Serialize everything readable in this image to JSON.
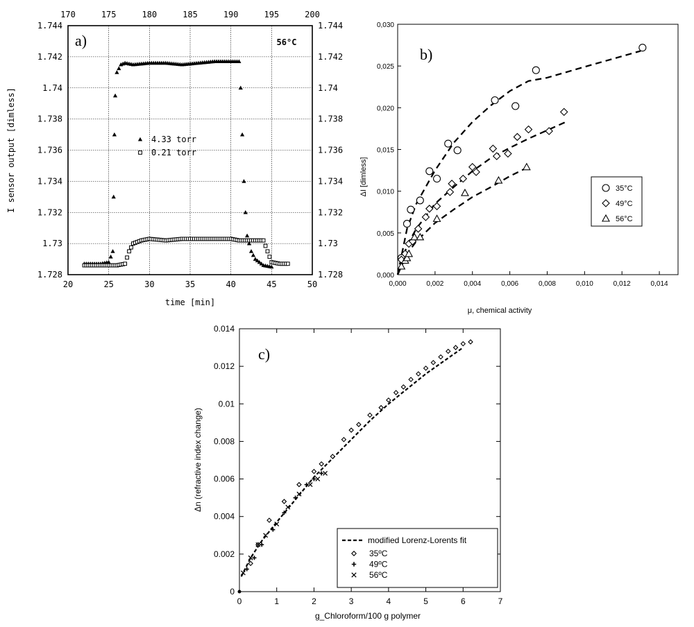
{
  "chart_data": [
    {
      "id": "a",
      "type": "scatter",
      "panel_label": "a)",
      "annotation": "56°C",
      "xlabel": "time [min]",
      "ylabel": "I sensor output [dimless]",
      "xlim": [
        20,
        50
      ],
      "x_ticks": [
        "20",
        "25",
        "30",
        "35",
        "40",
        "45",
        "50"
      ],
      "x2lim": [
        170,
        200
      ],
      "x2_ticks": [
        "170",
        "175",
        "180",
        "185",
        "190",
        "195",
        "200"
      ],
      "ylim": [
        1.728,
        1.744
      ],
      "y_ticks": [
        "1.728",
        "1.73",
        "1.732",
        "1.734",
        "1.736",
        "1.738",
        "1.74",
        "1.742",
        "1.744"
      ],
      "y_ticks_right": [
        "1.728",
        "1.73",
        "1.732",
        "1.734",
        "1.736",
        "1.738",
        "1.74",
        "1.742",
        "1.744"
      ],
      "legend": [
        "4.33 torr",
        "0.21 torr"
      ],
      "series": [
        {
          "name": "4.33 torr",
          "marker": "triangle",
          "x": [
            22,
            23,
            24,
            25,
            25.5,
            25.6,
            25.7,
            25.8,
            26,
            26.5,
            27,
            28,
            30,
            32,
            34,
            36,
            38,
            40,
            41,
            41.2,
            41.4,
            41.6,
            41.8,
            42,
            42.5,
            43,
            44,
            45
          ],
          "y": [
            1.7287,
            1.7287,
            1.7287,
            1.7288,
            1.7295,
            1.733,
            1.737,
            1.7395,
            1.741,
            1.7415,
            1.7416,
            1.7415,
            1.7416,
            1.7416,
            1.7415,
            1.7416,
            1.7417,
            1.7417,
            1.7417,
            1.74,
            1.737,
            1.734,
            1.732,
            1.7305,
            1.7295,
            1.729,
            1.7286,
            1.7285
          ]
        },
        {
          "name": "0.21 torr",
          "marker": "square",
          "x": [
            22,
            24,
            26,
            27,
            27.5,
            28,
            29,
            30,
            32,
            34,
            36,
            38,
            40,
            41,
            42,
            43,
            44,
            44.5,
            45,
            46,
            47
          ],
          "y": [
            1.7286,
            1.7286,
            1.7286,
            1.7287,
            1.7295,
            1.73,
            1.7302,
            1.7303,
            1.7302,
            1.7303,
            1.7303,
            1.7303,
            1.7303,
            1.7302,
            1.7302,
            1.7302,
            1.7302,
            1.7295,
            1.7288,
            1.7287,
            1.7287
          ]
        }
      ]
    },
    {
      "id": "b",
      "type": "scatter",
      "panel_label": "b)",
      "xlabel": "μ, chemical activity",
      "ylabel": "ΔI [dimless]",
      "xlim": [
        0,
        0.015
      ],
      "x_ticks": [
        "0,000",
        "0,002",
        "0,004",
        "0,006",
        "0,008",
        "0,010",
        "0,012",
        "0,014"
      ],
      "ylim": [
        0,
        0.03
      ],
      "y_ticks": [
        "0,000",
        "0,005",
        "0,010",
        "0,015",
        "0,020",
        "0,025",
        "0,030"
      ],
      "legend": [
        "35°C",
        "49°C",
        "56°C"
      ],
      "series": [
        {
          "name": "35°C",
          "marker": "circle",
          "x": [
            0.0002,
            0.0005,
            0.0007,
            0.0012,
            0.0017,
            0.0021,
            0.0027,
            0.0032,
            0.0052,
            0.0063,
            0.0074,
            0.0131
          ],
          "y": [
            0.002,
            0.0061,
            0.0078,
            0.0089,
            0.0124,
            0.0115,
            0.0157,
            0.0149,
            0.0209,
            0.0202,
            0.0245,
            0.0272
          ]
        },
        {
          "name": "49°C",
          "marker": "diamond",
          "x": [
            0.0002,
            0.0004,
            0.0006,
            0.0008,
            0.0011,
            0.0015,
            0.0017,
            0.0021,
            0.0028,
            0.0029,
            0.0035,
            0.004,
            0.0042,
            0.0051,
            0.0053,
            0.0059,
            0.0064,
            0.007,
            0.0081,
            0.0089
          ],
          "y": [
            0.0018,
            0.0025,
            0.0037,
            0.004,
            0.0055,
            0.0069,
            0.0079,
            0.0082,
            0.0099,
            0.0109,
            0.0115,
            0.0129,
            0.0123,
            0.0151,
            0.0142,
            0.0145,
            0.0165,
            0.0174,
            0.0172,
            0.0195
          ]
        },
        {
          "name": "56°C",
          "marker": "triangle",
          "x": [
            0.0002,
            0.0004,
            0.0005,
            0.0006,
            0.0009,
            0.0012,
            0.0021,
            0.0036,
            0.0054,
            0.0069
          ],
          "y": [
            0.001,
            0.0017,
            0.002,
            0.0025,
            0.0045,
            0.0045,
            0.0067,
            0.0098,
            0.0113,
            0.0129
          ]
        }
      ],
      "fits": [
        {
          "name": "35°C fit",
          "x": [
            0.0,
            0.0005,
            0.001,
            0.002,
            0.003,
            0.004,
            0.005,
            0.006,
            0.007,
            0.008,
            0.01,
            0.013
          ],
          "y": [
            0.0,
            0.0055,
            0.0085,
            0.0125,
            0.0158,
            0.0183,
            0.0203,
            0.022,
            0.0232,
            0.0236,
            0.0249,
            0.0268
          ]
        },
        {
          "name": "49°C fit",
          "x": [
            0.0,
            0.0005,
            0.001,
            0.002,
            0.003,
            0.004,
            0.005,
            0.006,
            0.007,
            0.008,
            0.009
          ],
          "y": [
            0.0,
            0.0035,
            0.0055,
            0.0085,
            0.0105,
            0.0124,
            0.014,
            0.0152,
            0.0163,
            0.0173,
            0.0183
          ]
        },
        {
          "name": "56°C fit",
          "x": [
            0.0,
            0.0005,
            0.001,
            0.002,
            0.003,
            0.004,
            0.005,
            0.006,
            0.007
          ],
          "y": [
            0.0,
            0.0025,
            0.004,
            0.0062,
            0.0078,
            0.0093,
            0.0105,
            0.0118,
            0.0129
          ]
        }
      ]
    },
    {
      "id": "c",
      "type": "scatter",
      "panel_label": "c)",
      "xlabel": "g_Chloroform/100 g polymer",
      "ylabel": "Δn (refractive index change)",
      "xlim": [
        0,
        7
      ],
      "x_ticks": [
        "0",
        "1",
        "2",
        "3",
        "4",
        "5",
        "6",
        "7"
      ],
      "ylim": [
        0,
        0.014
      ],
      "y_ticks": [
        "0",
        "0.002",
        "0.004",
        "0.006",
        "0.008",
        "0.01",
        "0.012",
        "0.014"
      ],
      "legend": [
        "modified Lorenz-Lorents fit",
        "35ºC",
        "49ºC",
        "56ºC"
      ],
      "series": [
        {
          "name": "35ºC",
          "marker": "diamond",
          "x": [
            0.3,
            0.5,
            0.8,
            1.2,
            1.6,
            2.0,
            2.2,
            2.5,
            2.8,
            3.0,
            3.2,
            3.5,
            3.8,
            4.0,
            4.2,
            4.4,
            4.6,
            4.8,
            5.0,
            5.2,
            5.4,
            5.6,
            5.8,
            6.0,
            6.2
          ],
          "y": [
            0.0015,
            0.0025,
            0.0038,
            0.0048,
            0.0057,
            0.0064,
            0.0068,
            0.0072,
            0.0081,
            0.0086,
            0.0089,
            0.0094,
            0.0098,
            0.0102,
            0.0106,
            0.0109,
            0.0113,
            0.0116,
            0.0119,
            0.0122,
            0.0125,
            0.0128,
            0.013,
            0.0132,
            0.0133
          ]
        },
        {
          "name": "49ºC",
          "marker": "plus",
          "x": [
            0.2,
            0.4,
            0.6,
            0.9,
            1.2,
            1.5,
            1.8,
            2.0,
            2.2
          ],
          "y": [
            0.0012,
            0.0018,
            0.0025,
            0.0033,
            0.0042,
            0.005,
            0.0057,
            0.006,
            0.0063
          ]
        },
        {
          "name": "56ºC",
          "marker": "cross",
          "x": [
            0.1,
            0.3,
            0.5,
            0.7,
            1.0,
            1.3,
            1.6,
            1.9,
            2.1,
            2.3
          ],
          "y": [
            0.001,
            0.0018,
            0.0025,
            0.003,
            0.0036,
            0.0045,
            0.0052,
            0.0057,
            0.006,
            0.0063
          ]
        }
      ],
      "fit": {
        "name": "modified Lorenz-Lorents fit",
        "x": [
          0.05,
          0.3,
          0.6,
          1.0,
          1.5,
          2.0,
          2.5,
          3.0,
          3.5,
          4.0,
          4.5,
          5.0,
          5.5,
          6.0
        ],
        "y": [
          0.0008,
          0.0018,
          0.0027,
          0.0037,
          0.0049,
          0.0061,
          0.0071,
          0.0081,
          0.0091,
          0.01,
          0.0108,
          0.0116,
          0.0123,
          0.013
        ]
      }
    }
  ]
}
